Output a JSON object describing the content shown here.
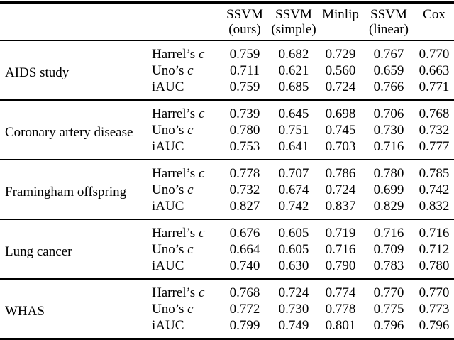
{
  "page": {
    "background_color": "#ffffff",
    "text_color": "#000000"
  },
  "table": {
    "header": {
      "columns": [
        {
          "name": "SSVM",
          "variant": "(ours)"
        },
        {
          "name": "SSVM",
          "variant": "(simple)"
        },
        {
          "name": "Minlip",
          "variant": ""
        },
        {
          "name": "SSVM",
          "variant": "(linear)"
        },
        {
          "name": "Cox",
          "variant": ""
        }
      ]
    },
    "metrics": [
      {
        "label": "Harrel’s",
        "symbol": "c"
      },
      {
        "label": "Uno’s",
        "symbol": "c"
      },
      {
        "label": "iAUC",
        "symbol": ""
      }
    ],
    "groups": [
      {
        "dataset": "AIDS study",
        "values": [
          [
            "0.759",
            "0.682",
            "0.729",
            "0.767",
            "0.770"
          ],
          [
            "0.711",
            "0.621",
            "0.560",
            "0.659",
            "0.663"
          ],
          [
            "0.759",
            "0.685",
            "0.724",
            "0.766",
            "0.771"
          ]
        ]
      },
      {
        "dataset": "Coronary artery disease",
        "values": [
          [
            "0.739",
            "0.645",
            "0.698",
            "0.706",
            "0.768"
          ],
          [
            "0.780",
            "0.751",
            "0.745",
            "0.730",
            "0.732"
          ],
          [
            "0.753",
            "0.641",
            "0.703",
            "0.716",
            "0.777"
          ]
        ]
      },
      {
        "dataset": "Framingham offspring",
        "values": [
          [
            "0.778",
            "0.707",
            "0.786",
            "0.780",
            "0.785"
          ],
          [
            "0.732",
            "0.674",
            "0.724",
            "0.699",
            "0.742"
          ],
          [
            "0.827",
            "0.742",
            "0.837",
            "0.829",
            "0.832"
          ]
        ]
      },
      {
        "dataset": "Lung cancer",
        "values": [
          [
            "0.676",
            "0.605",
            "0.719",
            "0.716",
            "0.716"
          ],
          [
            "0.664",
            "0.605",
            "0.716",
            "0.709",
            "0.712"
          ],
          [
            "0.740",
            "0.630",
            "0.790",
            "0.783",
            "0.780"
          ]
        ]
      },
      {
        "dataset": "WHAS",
        "values": [
          [
            "0.768",
            "0.724",
            "0.774",
            "0.770",
            "0.770"
          ],
          [
            "0.772",
            "0.730",
            "0.778",
            "0.775",
            "0.773"
          ],
          [
            "0.799",
            "0.749",
            "0.801",
            "0.796",
            "0.796"
          ]
        ]
      }
    ]
  }
}
